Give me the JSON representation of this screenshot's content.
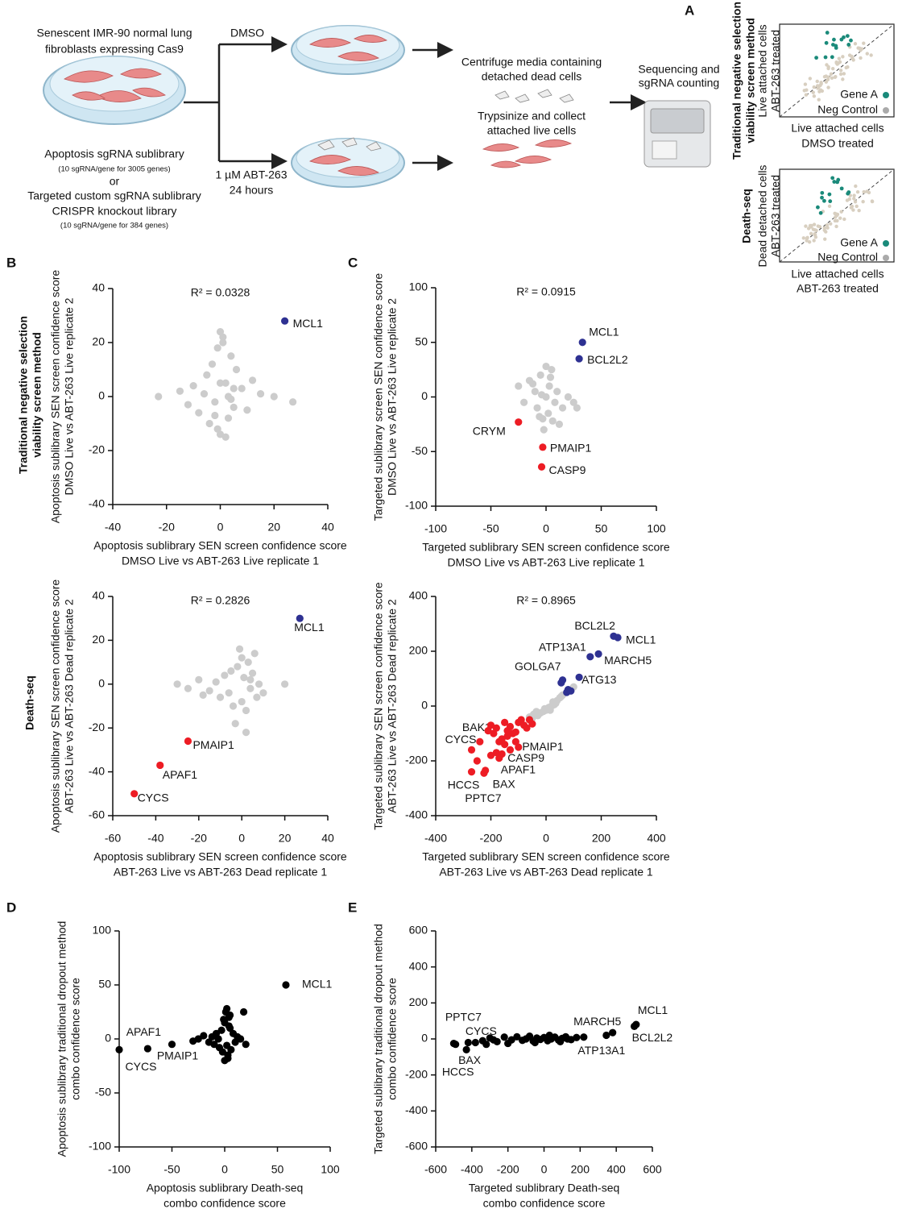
{
  "panel_labels": [
    "A",
    "B",
    "C",
    "D",
    "E"
  ],
  "schematic": {
    "cells_title": [
      "Senescent IMR-90 normal lung",
      "fibroblasts expressing Cas9"
    ],
    "library": [
      "Apoptosis sgRNA sublibrary",
      "(10 sgRNA/gene for 3005 genes)",
      "or",
      "Targeted custom sgRNA sublibrary",
      "CRISPR knockout library",
      "(10 sgRNA/gene for 384 genes)"
    ],
    "treatment_top": "DMSO",
    "treatment_bottom": [
      "1 µM ABT-263",
      "24 hours"
    ],
    "collect": [
      "Centrifuge media containing",
      "detached dead cells",
      "Trypsinize and collect",
      "attached live cells"
    ],
    "sequencing": [
      "Sequencing and",
      "sgRNA counting"
    ],
    "method_panels": [
      {
        "title": [
          "Traditional negative selection",
          "viability screen method"
        ],
        "ylabel": [
          "Live attached cells",
          "ABT-263 treated"
        ],
        "xlabel": [
          "Live attached cells",
          "DMSO treated"
        ],
        "legend": [
          "Gene A",
          "Neg Control"
        ]
      },
      {
        "title": [
          "Death-seq"
        ],
        "ylabel": [
          "Dead detached cells",
          "ABT-263 treated"
        ],
        "xlabel": [
          "Live attached cells",
          "ABT-263 treated"
        ],
        "legend": [
          "Gene A",
          "Neg Control"
        ]
      }
    ]
  },
  "row_labels": [
    [
      "Traditional negative selection",
      "viability screen method"
    ],
    [
      "Death-seq"
    ]
  ],
  "chart_data": [
    {
      "type": "scatter",
      "annotation": "R² = 0.0328",
      "xlabel": [
        "Apoptosis sublibrary SEN screen confidence score",
        "DMSO Live vs ABT-263 Live replicate 1"
      ],
      "ylabel": [
        "Apoptosis sublibrary SEN screen confidence score",
        "DMSO Live vs ABT-263 Live replicate 2"
      ],
      "xlim": [
        -40,
        40
      ],
      "ylim": [
        -40,
        40
      ],
      "xticks": [
        -40,
        -20,
        0,
        20,
        40
      ],
      "yticks": [
        -40,
        -20,
        0,
        20,
        40
      ],
      "series": [
        {
          "color": "#cccccc",
          "x": [
            -23,
            -15,
            -12,
            -10,
            -8,
            -6,
            -5,
            -4,
            -3,
            -2,
            -1,
            0,
            0,
            1,
            2,
            3,
            4,
            5,
            6,
            8,
            10,
            12,
            15,
            20,
            27,
            -1,
            1,
            2,
            3,
            0,
            -2,
            4,
            5
          ],
          "y": [
            0,
            2,
            -3,
            4,
            -6,
            1,
            8,
            -10,
            12,
            -2,
            18,
            24,
            -14,
            22,
            5,
            -8,
            15,
            -4,
            10,
            3,
            -5,
            6,
            1,
            0,
            -2,
            -12,
            20,
            -15,
            0,
            5,
            -7,
            -1,
            3
          ]
        },
        {
          "color": "#2e3192",
          "x": [
            24
          ],
          "y": [
            28
          ],
          "labels": [
            "MCL1"
          ]
        }
      ]
    },
    {
      "type": "scatter",
      "annotation": "R² = 0.0915",
      "xlabel": [
        "Targeted sublibrary SEN screen confidence score",
        "DMSO Live vs ABT-263 Live replicate 1"
      ],
      "ylabel": [
        "Targeted sublibrary screen SEN confidence score",
        "DMSO Live vs ABT-263 Live replicate 2"
      ],
      "xlim": [
        -100,
        100
      ],
      "ylim": [
        -100,
        100
      ],
      "xticks": [
        -100,
        -50,
        0,
        50,
        100
      ],
      "yticks": [
        -100,
        -50,
        0,
        50,
        100
      ],
      "series": [
        {
          "color": "#cccccc",
          "x": [
            -25,
            -20,
            -15,
            -10,
            -8,
            -5,
            -3,
            -2,
            0,
            0,
            2,
            3,
            5,
            8,
            10,
            12,
            15,
            20,
            25,
            28,
            -12,
            -6,
            4,
            6,
            -4
          ],
          "y": [
            10,
            -5,
            15,
            5,
            -10,
            20,
            -20,
            -30,
            0,
            28,
            -15,
            10,
            25,
            -5,
            5,
            -25,
            -10,
            0,
            -5,
            -10,
            12,
            -18,
            18,
            -22,
            2
          ]
        },
        {
          "color": "#2e3192",
          "x": [
            33,
            30
          ],
          "y": [
            50,
            35
          ],
          "labels": [
            "MCL1",
            "BCL2L2"
          ]
        },
        {
          "color": "#ed1c24",
          "x": [
            -25,
            -3,
            -4
          ],
          "y": [
            -23,
            -46,
            -64
          ],
          "labels": [
            "CRYM",
            "PMAIP1",
            "CASP9"
          ]
        }
      ]
    },
    {
      "type": "scatter",
      "annotation": "R² = 0.2826",
      "xlabel": [
        "Apoptosis sublibrary SEN screen confidence score",
        "ABT-263 Live vs ABT-263 Dead replicate 1"
      ],
      "ylabel": [
        "Apoptosis sublibrary SEN screen confidence score",
        "ABT-263 Live vs ABT-263 Dead replicate 2"
      ],
      "xlim": [
        -60,
        40
      ],
      "ylim": [
        -60,
        40
      ],
      "xticks": [
        -60,
        -40,
        -20,
        0,
        20,
        40
      ],
      "yticks": [
        -60,
        -40,
        -20,
        0,
        20,
        40
      ],
      "series": [
        {
          "color": "#cccccc",
          "x": [
            -30,
            -25,
            -20,
            -18,
            -15,
            -12,
            -10,
            -8,
            -6,
            -5,
            -4,
            -2,
            0,
            0,
            1,
            2,
            3,
            4,
            5,
            6,
            8,
            10,
            -3,
            2,
            20,
            -1,
            4,
            7
          ],
          "y": [
            0,
            -2,
            2,
            -5,
            -3,
            1,
            -6,
            4,
            -4,
            6,
            -10,
            8,
            12,
            -8,
            3,
            -12,
            10,
            -2,
            5,
            14,
            0,
            -4,
            -18,
            -22,
            0,
            16,
            2,
            -6
          ]
        },
        {
          "color": "#2e3192",
          "x": [
            27
          ],
          "y": [
            30
          ],
          "labels": [
            "MCL1"
          ]
        },
        {
          "color": "#ed1c24",
          "x": [
            -25,
            -38,
            -50
          ],
          "y": [
            -26,
            -37,
            -50
          ],
          "labels": [
            "PMAIP1",
            "APAF1",
            "CYCS"
          ]
        }
      ]
    },
    {
      "type": "scatter",
      "annotation": "R² = 0.8965",
      "xlabel": [
        "Targeted sublibrary SEN screen confidence score",
        "ABT-263 Live vs ABT-263 Dead replicate 1"
      ],
      "ylabel": [
        "Targeted sublibrary SEN screen confidence score",
        "ABT-263 Live vs ABT-263 Dead replicate 2"
      ],
      "xlim": [
        -400,
        400
      ],
      "ylim": [
        -400,
        400
      ],
      "xticks": [
        -400,
        -200,
        0,
        200,
        400
      ],
      "yticks": [
        -400,
        -200,
        0,
        200,
        400
      ],
      "series": [
        {
          "color": "#cccccc",
          "x": [
            -60,
            -50,
            -40,
            -30,
            -20,
            -10,
            0,
            10,
            20,
            30,
            40,
            50,
            60,
            -35,
            -5,
            15,
            35,
            55,
            80,
            100,
            -45,
            25
          ],
          "y": [
            -40,
            -45,
            -30,
            -35,
            -25,
            -20,
            -15,
            -5,
            0,
            5,
            20,
            30,
            40,
            -20,
            -10,
            -15,
            10,
            35,
            55,
            70,
            -30,
            15
          ]
        },
        {
          "color": "#2e3192",
          "x": [
            260,
            245,
            190,
            160,
            120,
            60,
            80,
            75,
            90,
            55
          ],
          "y": [
            250,
            255,
            190,
            180,
            105,
            95,
            60,
            50,
            55,
            85
          ],
          "labels": [
            "MCL1",
            "BCL2L2",
            "MARCH5",
            "ATP13A1",
            "ATG13",
            "GOLGA7",
            null,
            null,
            null,
            null
          ]
        },
        {
          "color": "#ed1c24",
          "x": [
            -240,
            -270,
            -110,
            -160,
            -170,
            -220,
            -225,
            -270,
            -200,
            -180,
            -150,
            -130,
            -100,
            -90,
            -80,
            -120,
            -140,
            -160,
            -190,
            -210,
            -60,
            -70,
            -50,
            -110,
            -100,
            -150,
            -170,
            -130,
            -200,
            -250,
            -180,
            -140
          ],
          "y": [
            -130,
            -160,
            -130,
            -175,
            -190,
            -235,
            -245,
            -240,
            -70,
            -80,
            -60,
            -75,
            -60,
            -50,
            -70,
            -100,
            -110,
            -120,
            -100,
            -90,
            -50,
            -80,
            -65,
            -95,
            -150,
            -140,
            -130,
            -160,
            -180,
            -200,
            -170,
            -90
          ],
          "labels": [
            "BAK1",
            "CYCS",
            "PMAIP1",
            "CASP9",
            "APAF1",
            "BAX",
            "PPTC7",
            "HCCS",
            null,
            null,
            null,
            null,
            null,
            null,
            null,
            null,
            null,
            null,
            null,
            null,
            null,
            null,
            null,
            null,
            null,
            null,
            null,
            null,
            null,
            null,
            null,
            null
          ]
        }
      ]
    },
    {
      "type": "scatter",
      "xlabel": [
        "Apoptosis sublibrary Death-seq",
        "combo confidence score"
      ],
      "ylabel": [
        "Apoptosis sublibrary traditional dropout method",
        "combo confidence score"
      ],
      "xlim": [
        -100,
        100
      ],
      "ylim": [
        -100,
        100
      ],
      "xticks": [
        -100,
        -50,
        0,
        50,
        100
      ],
      "yticks": [
        -100,
        -50,
        0,
        50,
        100
      ],
      "series": [
        {
          "color": "#000000",
          "x": [
            -30,
            -25,
            -20,
            -15,
            -12,
            -10,
            -8,
            -5,
            -3,
            -2,
            0,
            0,
            1,
            2,
            3,
            4,
            5,
            6,
            8,
            10,
            12,
            15,
            18,
            20,
            -6,
            2,
            4,
            -1,
            3,
            5
          ],
          "y": [
            -2,
            0,
            3,
            -3,
            2,
            -5,
            5,
            -8,
            8,
            -12,
            15,
            -20,
            25,
            28,
            -15,
            20,
            10,
            -10,
            5,
            -3,
            2,
            0,
            25,
            -5,
            0,
            -6,
            12,
            18,
            -18,
            22
          ]
        },
        {
          "color": "#000000",
          "x": [
            58,
            -73,
            -100,
            -50
          ],
          "y": [
            50,
            -9,
            -10,
            -5
          ],
          "labels": [
            "MCL1",
            "APAF1",
            "CYCS",
            "PMAIP1"
          ]
        }
      ]
    },
    {
      "type": "scatter",
      "xlabel": [
        "Targeted sublibrary Death-seq",
        "combo confidence score"
      ],
      "ylabel": [
        "Targeted sublibrary traditional dropout method",
        "combo confidence score"
      ],
      "xlim": [
        -600,
        600
      ],
      "ylim": [
        -600,
        600
      ],
      "xticks": [
        -600,
        -400,
        -200,
        0,
        200,
        400,
        600
      ],
      "yticks": [
        -600,
        -400,
        -200,
        0,
        200,
        400,
        600
      ],
      "series": [
        {
          "color": "#000000",
          "x": [
            -380,
            -340,
            -300,
            -260,
            -220,
            -180,
            -150,
            -120,
            -100,
            -80,
            -60,
            -40,
            -20,
            0,
            20,
            40,
            60,
            80,
            100,
            120,
            150,
            180,
            220,
            -200,
            -50,
            30,
            -280,
            90,
            130,
            -320
          ],
          "y": [
            -20,
            -10,
            5,
            -15,
            10,
            -5,
            12,
            -8,
            0,
            15,
            -12,
            5,
            -3,
            8,
            -10,
            0,
            10,
            -6,
            3,
            12,
            -4,
            8,
            10,
            -25,
            -20,
            20,
            -5,
            -15,
            0,
            -30
          ]
        },
        {
          "color": "#000000",
          "x": [
            510,
            500,
            380,
            345,
            -500,
            -420,
            -430,
            -490
          ],
          "y": [
            80,
            70,
            35,
            20,
            -25,
            -20,
            -60,
            -30
          ],
          "labels": [
            "MCL1",
            "BCL2L2",
            "MARCH5",
            "ATP13A1",
            "PPTC7",
            "CYCS",
            "BAX",
            "HCCS"
          ]
        }
      ]
    }
  ]
}
